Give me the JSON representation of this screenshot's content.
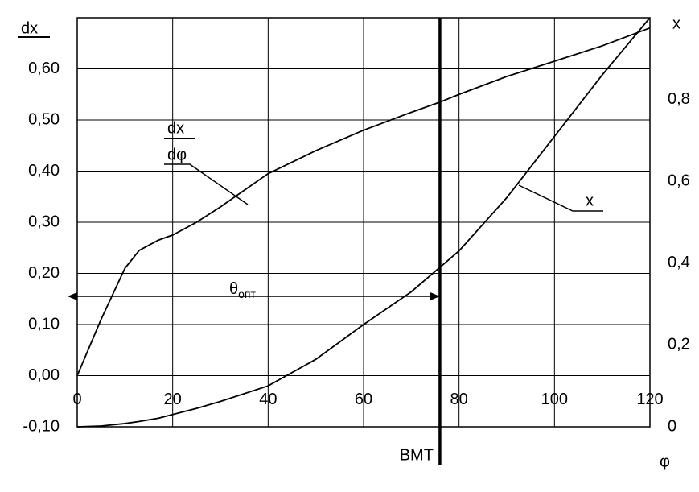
{
  "chart_data": {
    "type": "line",
    "y_label": "dx",
    "y2_label": "x",
    "x_label": "φ",
    "x": [
      0,
      5,
      10,
      13,
      17,
      20,
      25,
      30,
      40,
      50,
      60,
      70,
      76,
      80,
      90,
      100,
      110,
      120
    ],
    "series": [
      {
        "name_top": "dx",
        "name_bottom": "dφ",
        "color": "#000000",
        "values": [
          0,
          0.11,
          0.21,
          0.245,
          0.265,
          0.275,
          0.3,
          0.33,
          0.395,
          0.44,
          0.48,
          0.515,
          0.535,
          0.55,
          0.585,
          0.615,
          0.645,
          0.68
        ]
      },
      {
        "name": "x",
        "color": "#000000",
        "axis": "y2",
        "values": [
          0,
          0.002,
          0.008,
          0.013,
          0.021,
          0.03,
          0.045,
          0.062,
          0.1,
          0.165,
          0.25,
          0.33,
          0.39,
          0.43,
          0.56,
          0.71,
          0.86,
          1.0
        ]
      }
    ],
    "xlim": [
      0,
      120
    ],
    "xticks": [
      0,
      20,
      40,
      60,
      80,
      100,
      120
    ],
    "ylim": [
      -0.1,
      0.7
    ],
    "yticks": [
      {
        "value": -0.1,
        "label": "-0,10"
      },
      {
        "value": 0,
        "label": "0,00"
      },
      {
        "value": 0.1,
        "label": "0,10"
      },
      {
        "value": 0.2,
        "label": "0,20"
      },
      {
        "value": 0.3,
        "label": "0,30"
      },
      {
        "value": 0.4,
        "label": "0,40"
      },
      {
        "value": 0.5,
        "label": "0,50"
      },
      {
        "value": 0.6,
        "label": "0,60"
      }
    ],
    "y2lim": [
      0,
      1
    ],
    "y2ticks": [
      0,
      {
        "value": 0.2,
        "label": "0,2"
      },
      {
        "value": 0.4,
        "label": "0,4"
      },
      {
        "value": 0.6,
        "label": "0,6"
      },
      {
        "value": 0.8,
        "label": "0,8"
      }
    ],
    "grid": true,
    "vline": {
      "x": 76,
      "label": "BMT"
    },
    "span_label": "θ",
    "span_label_sub": "опт"
  }
}
